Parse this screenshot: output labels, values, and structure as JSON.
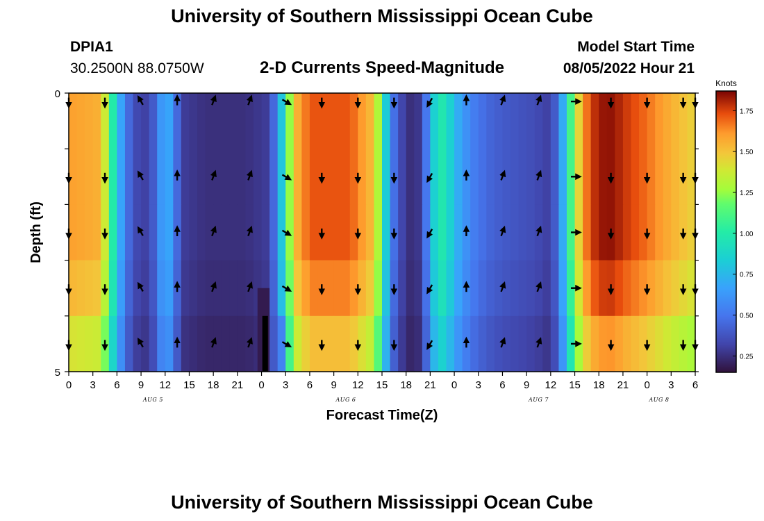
{
  "header": {
    "title": "University of Southern Mississippi Ocean Cube",
    "station": "DPIA1",
    "coords": "30.2500N  88.0750W",
    "subtitle": "2-D Currents Speed-Magnitude",
    "start_label": "Model Start Time",
    "start_value": "08/05/2022 Hour 21"
  },
  "footer": {
    "title": "University of Southern Mississippi Ocean Cube"
  },
  "chart_data": {
    "type": "heatmap",
    "title": "2-D Currents Speed-Magnitude",
    "xlabel": "Forecast Time(Z)",
    "ylabel": "Depth (ft)",
    "x_ticks": [
      "0",
      "3",
      "6",
      "9",
      "12",
      "15",
      "18",
      "21",
      "0",
      "3",
      "6",
      "9",
      "12",
      "15",
      "18",
      "21",
      "0",
      "3",
      "6",
      "9",
      "12",
      "15",
      "18",
      "21",
      "0",
      "3",
      "6"
    ],
    "x_day_labels": [
      {
        "label": "AUG 5",
        "hour": 10.5
      },
      {
        "label": "AUG 6",
        "hour": 34.5
      },
      {
        "label": "AUG 7",
        "hour": 58.5
      },
      {
        "label": "AUG 8",
        "hour": 73.5
      }
    ],
    "xlim_hours": [
      0,
      78
    ],
    "y_ticks": [
      "0",
      "5"
    ],
    "ylim_ft": [
      0,
      5
    ],
    "depth_levels": 5,
    "colorbar": {
      "label": "Knots",
      "ticks": [
        "0.25",
        "0.50",
        "0.75",
        "1.00",
        "1.25",
        "1.50",
        "1.75"
      ],
      "range": [
        0.15,
        1.87
      ]
    },
    "speed_profile_hours": [
      0,
      4,
      5,
      6,
      7,
      8,
      10,
      11,
      12,
      13,
      14,
      17,
      18,
      22,
      25,
      26,
      27,
      28,
      30,
      35,
      38,
      39,
      40,
      41,
      42,
      43,
      44,
      45,
      46,
      47,
      48,
      50,
      52,
      54,
      58,
      60,
      61,
      62,
      63,
      64,
      65,
      66,
      67,
      68,
      69,
      72,
      75,
      78
    ],
    "speed_profile_knots": [
      1.6,
      1.55,
      1.2,
      0.8,
      0.55,
      0.35,
      0.3,
      0.5,
      0.75,
      0.6,
      0.3,
      0.25,
      0.25,
      0.25,
      0.3,
      0.6,
      1.0,
      1.5,
      1.72,
      1.72,
      1.5,
      1.1,
      0.55,
      0.4,
      0.25,
      0.25,
      0.3,
      0.7,
      1.0,
      0.95,
      0.75,
      0.55,
      0.45,
      0.4,
      0.35,
      0.3,
      0.5,
      0.9,
      1.3,
      1.6,
      1.75,
      1.82,
      1.85,
      1.83,
      1.78,
      1.68,
      1.55,
      1.45
    ],
    "vector_hours": [
      0,
      4.5,
      9,
      13.5,
      18,
      22.5,
      27,
      31.5,
      36,
      40.5,
      45,
      49.5,
      54,
      58.5,
      63,
      67.5,
      72,
      76.5,
      78
    ],
    "vector_angles_deg": [
      180,
      180,
      330,
      0,
      20,
      20,
      120,
      180,
      180,
      180,
      210,
      0,
      20,
      20,
      90,
      180,
      180,
      180,
      180
    ]
  }
}
